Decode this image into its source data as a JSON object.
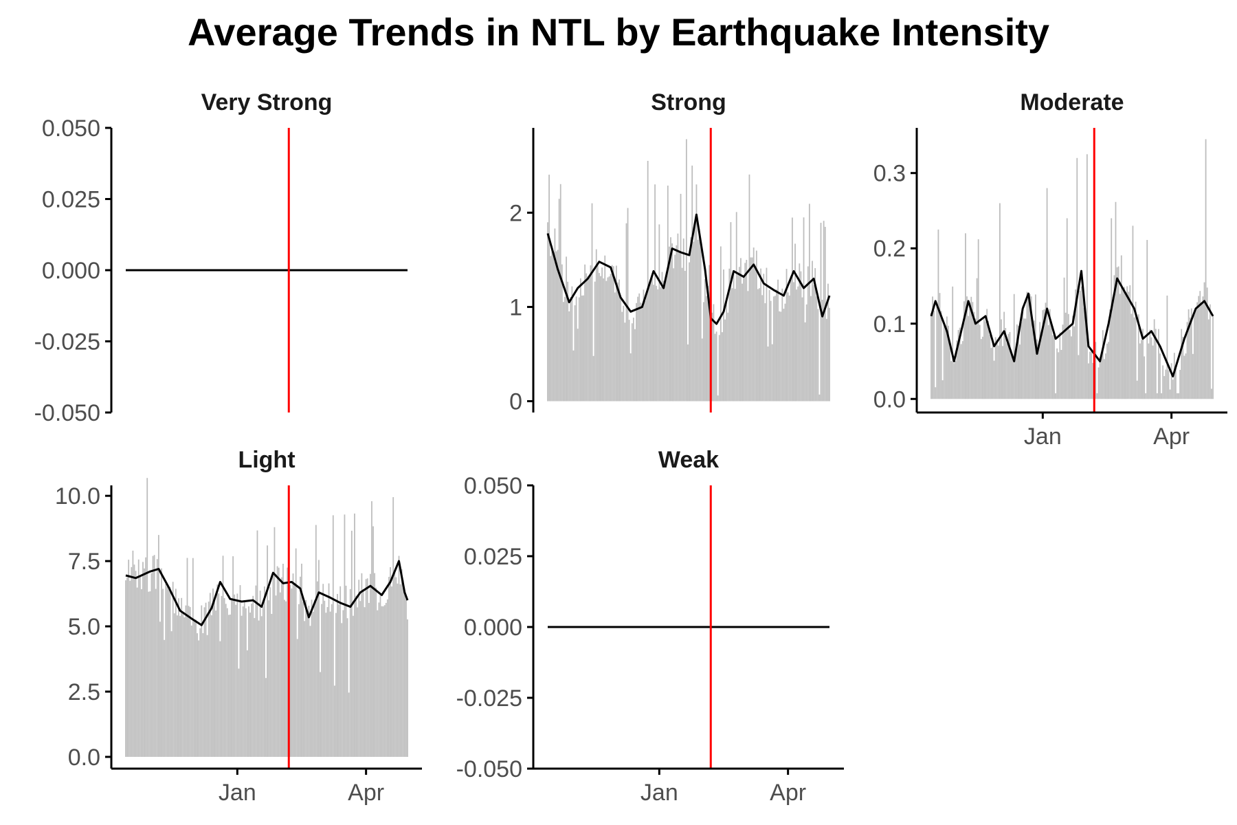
{
  "title": "Average Trends in NTL by Earthquake Intensity",
  "colors": {
    "bars": "#bdbdbd",
    "trend": "#000000",
    "event_line": "#ff0000"
  },
  "chart_data": {
    "type": "bar",
    "note": "Faceted daily series: grey bars = daily average NTL, black line = smoothed trend, red vertical line = earthquake date (approx. Feb 6). Daily values approximated.",
    "date_range": [
      "2022-10-15",
      "2023-04-30"
    ],
    "event_date": "2023-02-06",
    "x_ticks": [
      {
        "date": "2023-01-01",
        "label": "Jan"
      },
      {
        "date": "2023-04-01",
        "label": "Apr"
      }
    ],
    "panels": [
      {
        "title": "Very Strong",
        "ylim": [
          -0.05,
          0.05
        ],
        "yticks": [
          -0.05,
          -0.025,
          0,
          0.025,
          0.05
        ],
        "ytick_labels": [
          "-0.050",
          "-0.025",
          "0.000",
          "0.025",
          "0.050"
        ],
        "show_x_axis": false,
        "bars": false,
        "trend": [
          {
            "date": "2022-10-15",
            "y": 0
          },
          {
            "date": "2023-04-30",
            "y": 0
          }
        ]
      },
      {
        "title": "Strong",
        "ylim": [
          -0.12,
          2.9
        ],
        "yticks": [
          0,
          1,
          2
        ],
        "ytick_labels": [
          "0",
          "1",
          "2"
        ],
        "show_x_axis": false,
        "bars": true,
        "bar_spikes": [
          {
            "date": "2022-12-24",
            "y": 2.55
          },
          {
            "date": "2023-01-20",
            "y": 2.78
          },
          {
            "date": "2023-01-24",
            "y": 2.5
          },
          {
            "date": "2023-01-27",
            "y": 2.3
          },
          {
            "date": "2023-01-16",
            "y": 2.2
          },
          {
            "date": "2022-11-15",
            "y": 2.1
          },
          {
            "date": "2022-12-10",
            "y": 2.05
          },
          {
            "date": "2023-02-20",
            "y": 1.9
          },
          {
            "date": "2023-04-12",
            "y": 1.95
          },
          {
            "date": "2023-04-27",
            "y": 1.85
          }
        ],
        "trend": [
          {
            "date": "2022-10-15",
            "y": 1.78
          },
          {
            "date": "2022-10-22",
            "y": 1.4
          },
          {
            "date": "2022-10-30",
            "y": 1.05
          },
          {
            "date": "2022-11-05",
            "y": 1.2
          },
          {
            "date": "2022-11-12",
            "y": 1.3
          },
          {
            "date": "2022-11-20",
            "y": 1.48
          },
          {
            "date": "2022-11-28",
            "y": 1.42
          },
          {
            "date": "2022-12-05",
            "y": 1.1
          },
          {
            "date": "2022-12-12",
            "y": 0.95
          },
          {
            "date": "2022-12-20",
            "y": 1.0
          },
          {
            "date": "2022-12-28",
            "y": 1.38
          },
          {
            "date": "2023-01-04",
            "y": 1.2
          },
          {
            "date": "2023-01-10",
            "y": 1.62
          },
          {
            "date": "2023-01-16",
            "y": 1.58
          },
          {
            "date": "2023-01-22",
            "y": 1.55
          },
          {
            "date": "2023-01-27",
            "y": 1.98
          },
          {
            "date": "2023-02-02",
            "y": 1.4
          },
          {
            "date": "2023-02-06",
            "y": 0.88
          },
          {
            "date": "2023-02-10",
            "y": 0.82
          },
          {
            "date": "2023-02-15",
            "y": 0.95
          },
          {
            "date": "2023-02-22",
            "y": 1.38
          },
          {
            "date": "2023-03-01",
            "y": 1.32
          },
          {
            "date": "2023-03-08",
            "y": 1.45
          },
          {
            "date": "2023-03-15",
            "y": 1.25
          },
          {
            "date": "2023-03-22",
            "y": 1.18
          },
          {
            "date": "2023-03-29",
            "y": 1.12
          },
          {
            "date": "2023-04-05",
            "y": 1.38
          },
          {
            "date": "2023-04-12",
            "y": 1.2
          },
          {
            "date": "2023-04-19",
            "y": 1.3
          },
          {
            "date": "2023-04-25",
            "y": 0.9
          },
          {
            "date": "2023-04-30",
            "y": 1.12
          }
        ]
      },
      {
        "title": "Moderate",
        "ylim": [
          -0.018,
          0.36
        ],
        "yticks": [
          0,
          0.1,
          0.2,
          0.3
        ],
        "ytick_labels": [
          "0.0",
          "0.1",
          "0.2",
          "0.3"
        ],
        "show_x_axis": true,
        "bars": true,
        "bar_spikes": [
          {
            "date": "2023-04-25",
            "y": 0.345
          },
          {
            "date": "2023-01-25",
            "y": 0.32
          },
          {
            "date": "2023-02-01",
            "y": 0.325
          },
          {
            "date": "2023-01-04",
            "y": 0.28
          },
          {
            "date": "2022-12-02",
            "y": 0.26
          },
          {
            "date": "2023-01-18",
            "y": 0.24
          },
          {
            "date": "2022-10-20",
            "y": 0.225
          },
          {
            "date": "2022-11-08",
            "y": 0.22
          },
          {
            "date": "2023-03-05",
            "y": 0.23
          },
          {
            "date": "2023-02-18",
            "y": 0.24
          }
        ],
        "trend": [
          {
            "date": "2022-10-15",
            "y": 0.11
          },
          {
            "date": "2022-10-18",
            "y": 0.13
          },
          {
            "date": "2022-10-26",
            "y": 0.09
          },
          {
            "date": "2022-10-31",
            "y": 0.05
          },
          {
            "date": "2022-11-05",
            "y": 0.09
          },
          {
            "date": "2022-11-10",
            "y": 0.13
          },
          {
            "date": "2022-11-15",
            "y": 0.1
          },
          {
            "date": "2022-11-22",
            "y": 0.11
          },
          {
            "date": "2022-11-28",
            "y": 0.07
          },
          {
            "date": "2022-12-05",
            "y": 0.09
          },
          {
            "date": "2022-12-12",
            "y": 0.05
          },
          {
            "date": "2022-12-18",
            "y": 0.12
          },
          {
            "date": "2022-12-22",
            "y": 0.14
          },
          {
            "date": "2022-12-28",
            "y": 0.06
          },
          {
            "date": "2023-01-04",
            "y": 0.12
          },
          {
            "date": "2023-01-10",
            "y": 0.08
          },
          {
            "date": "2023-01-16",
            "y": 0.09
          },
          {
            "date": "2023-01-22",
            "y": 0.1
          },
          {
            "date": "2023-01-28",
            "y": 0.17
          },
          {
            "date": "2023-02-02",
            "y": 0.07
          },
          {
            "date": "2023-02-06",
            "y": 0.06
          },
          {
            "date": "2023-02-10",
            "y": 0.05
          },
          {
            "date": "2023-02-16",
            "y": 0.1
          },
          {
            "date": "2023-02-22",
            "y": 0.16
          },
          {
            "date": "2023-02-28",
            "y": 0.14
          },
          {
            "date": "2023-03-06",
            "y": 0.12
          },
          {
            "date": "2023-03-12",
            "y": 0.08
          },
          {
            "date": "2023-03-18",
            "y": 0.09
          },
          {
            "date": "2023-03-24",
            "y": 0.07
          },
          {
            "date": "2023-04-02",
            "y": 0.03
          },
          {
            "date": "2023-04-10",
            "y": 0.08
          },
          {
            "date": "2023-04-18",
            "y": 0.12
          },
          {
            "date": "2023-04-24",
            "y": 0.13
          },
          {
            "date": "2023-04-30",
            "y": 0.11
          }
        ]
      },
      {
        "title": "Light",
        "ylim": [
          -0.45,
          10.4
        ],
        "yticks": [
          0,
          2.5,
          5,
          7.5,
          10
        ],
        "ytick_labels": [
          "0.0",
          "2.5",
          "5.0",
          "7.5",
          "10.0"
        ],
        "show_x_axis": true,
        "bars": true,
        "bar_spikes": [
          {
            "date": "2023-04-20",
            "y": 9.95
          },
          {
            "date": "2023-01-27",
            "y": 8.8
          },
          {
            "date": "2022-11-07",
            "y": 8.5
          },
          {
            "date": "2023-01-22",
            "y": 8.1
          },
          {
            "date": "2022-10-20",
            "y": 7.9
          },
          {
            "date": "2023-04-24",
            "y": 7.7
          },
          {
            "date": "2023-02-15",
            "y": 7.4
          }
        ],
        "trend": [
          {
            "date": "2022-10-15",
            "y": 6.95
          },
          {
            "date": "2022-10-22",
            "y": 6.85
          },
          {
            "date": "2022-11-01",
            "y": 7.1
          },
          {
            "date": "2022-11-07",
            "y": 7.2
          },
          {
            "date": "2022-11-14",
            "y": 6.5
          },
          {
            "date": "2022-11-22",
            "y": 5.6
          },
          {
            "date": "2022-11-30",
            "y": 5.3
          },
          {
            "date": "2022-12-07",
            "y": 5.05
          },
          {
            "date": "2022-12-14",
            "y": 5.7
          },
          {
            "date": "2022-12-20",
            "y": 6.7
          },
          {
            "date": "2022-12-27",
            "y": 6.05
          },
          {
            "date": "2023-01-04",
            "y": 5.95
          },
          {
            "date": "2023-01-12",
            "y": 6.0
          },
          {
            "date": "2023-01-18",
            "y": 5.75
          },
          {
            "date": "2023-01-26",
            "y": 7.05
          },
          {
            "date": "2023-02-02",
            "y": 6.65
          },
          {
            "date": "2023-02-08",
            "y": 6.7
          },
          {
            "date": "2023-02-14",
            "y": 6.45
          },
          {
            "date": "2023-02-20",
            "y": 5.35
          },
          {
            "date": "2023-02-27",
            "y": 6.3
          },
          {
            "date": "2023-03-07",
            "y": 6.1
          },
          {
            "date": "2023-03-14",
            "y": 5.9
          },
          {
            "date": "2023-03-21",
            "y": 5.75
          },
          {
            "date": "2023-03-28",
            "y": 6.3
          },
          {
            "date": "2023-04-04",
            "y": 6.55
          },
          {
            "date": "2023-04-12",
            "y": 6.2
          },
          {
            "date": "2023-04-18",
            "y": 6.7
          },
          {
            "date": "2023-04-24",
            "y": 7.5
          },
          {
            "date": "2023-04-28",
            "y": 6.3
          },
          {
            "date": "2023-04-30",
            "y": 6.0
          }
        ]
      },
      {
        "title": "Weak",
        "ylim": [
          -0.05,
          0.05
        ],
        "yticks": [
          -0.05,
          -0.025,
          0,
          0.025,
          0.05
        ],
        "ytick_labels": [
          "-0.050",
          "-0.025",
          "0.000",
          "0.025",
          "0.050"
        ],
        "show_x_axis": true,
        "bars": false,
        "trend": [
          {
            "date": "2022-10-15",
            "y": 0
          },
          {
            "date": "2023-04-30",
            "y": 0
          }
        ]
      }
    ]
  }
}
